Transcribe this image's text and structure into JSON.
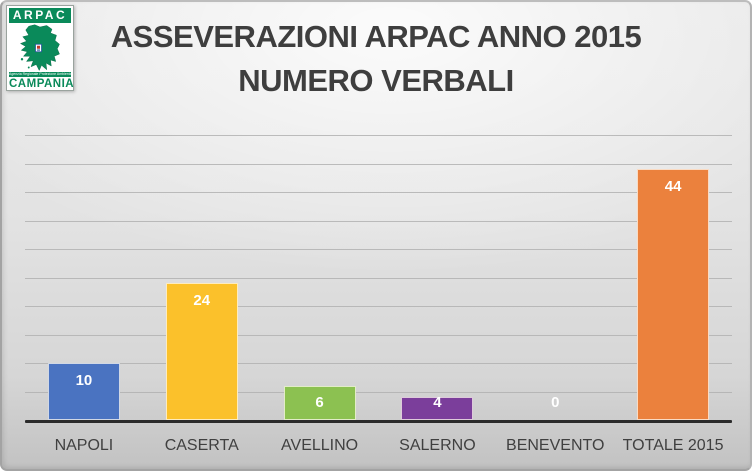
{
  "logo": {
    "header": "ARPAC",
    "subtext": "Agenzia Regionale Protezione Ambientale",
    "region": "CAMPANIA",
    "green": "#0a8a5a"
  },
  "title": {
    "line1": "ASSEVERAZIONI ARPAC ANNO 2015",
    "line2": "NUMERO VERBALI"
  },
  "chart_data": {
    "type": "bar",
    "title": "ASSEVERAZIONI ARPAC ANNO 2015 NUMERO VERBALI",
    "categories": [
      "NAPOLI",
      "CASERTA",
      "AVELLINO",
      "SALERNO",
      "BENEVENTO",
      "TOTALE 2015"
    ],
    "values": [
      10,
      24,
      6,
      4,
      0,
      44
    ],
    "bar_colors": [
      "#4A73C1",
      "#FBC12B",
      "#8CC151",
      "#7B3E9B",
      "#A5A5A5",
      "#EB813D"
    ],
    "data_labels": [
      "10",
      "24",
      "6",
      "4",
      "0",
      "44"
    ],
    "data_label_color": "#ffffff",
    "xlabel": "",
    "ylabel": "",
    "ylim": [
      0,
      50
    ],
    "grid_step": 5,
    "grid": true,
    "legend": false,
    "category_label_color": "#404040",
    "axis_color": "#2b2b2b",
    "gridline_color": "#b2b2b2"
  }
}
